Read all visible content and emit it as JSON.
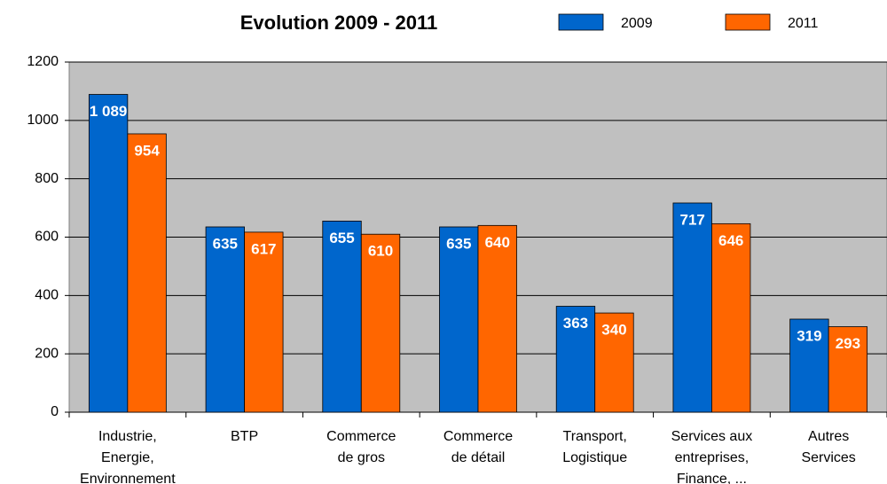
{
  "chart_data": {
    "type": "bar",
    "title": "Evolution 2009 - 2011",
    "categories": [
      [
        "Industrie,",
        "Energie,",
        "Environnement"
      ],
      [
        "BTP"
      ],
      [
        "Commerce",
        "de gros"
      ],
      [
        "Commerce",
        "de détail"
      ],
      [
        "Transport,",
        "Logistique"
      ],
      [
        "Services aux",
        "entreprises,",
        "Finance, ..."
      ],
      [
        "Autres",
        "Services"
      ]
    ],
    "series": [
      {
        "name": "2009",
        "color": "#0066cc",
        "values": [
          1089,
          635,
          655,
          635,
          363,
          717,
          319
        ],
        "value_labels": [
          "1 089",
          "635",
          "655",
          "635",
          "363",
          "717",
          "319"
        ]
      },
      {
        "name": "2011",
        "color": "#ff6600",
        "values": [
          954,
          617,
          610,
          640,
          340,
          646,
          293
        ]
      }
    ],
    "ylim": [
      0,
      1200
    ],
    "yticks": [
      0,
      200,
      400,
      600,
      800,
      1000,
      1200
    ],
    "grid": true,
    "legend": "top"
  }
}
